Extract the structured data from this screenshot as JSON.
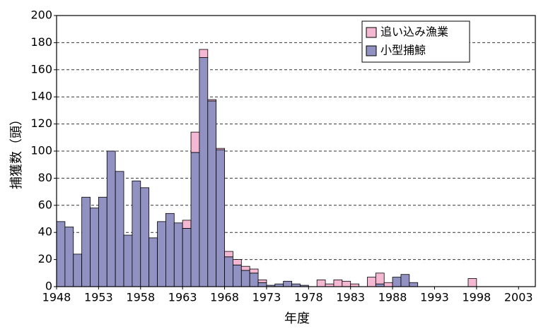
{
  "chart_data": {
    "type": "stacked_bar",
    "x_label": "年度",
    "y_label": "捕獲数（頭）",
    "x": [
      1948,
      1949,
      1950,
      1951,
      1952,
      1953,
      1954,
      1955,
      1956,
      1957,
      1958,
      1959,
      1960,
      1961,
      1962,
      1963,
      1964,
      1965,
      1966,
      1967,
      1968,
      1969,
      1970,
      1971,
      1972,
      1973,
      1974,
      1975,
      1976,
      1977,
      1978,
      1979,
      1980,
      1981,
      1982,
      1983,
      1984,
      1985,
      1986,
      1987,
      1988,
      1989,
      1990,
      1991,
      1992,
      1993,
      1994,
      1995,
      1996,
      1997,
      1998,
      1999,
      2000,
      2001,
      2002,
      2003,
      2004
    ],
    "series": [
      {
        "name": "小型捕鯨",
        "color": "#9191c2",
        "values": [
          48,
          44,
          24,
          66,
          58,
          66,
          100,
          85,
          38,
          78,
          73,
          36,
          48,
          54,
          47,
          43,
          99,
          169,
          137,
          101,
          22,
          16,
          12,
          10,
          3,
          1,
          2,
          4,
          2,
          1,
          0,
          0,
          0,
          0,
          0,
          0,
          0,
          0,
          2,
          0,
          7,
          9,
          3,
          0,
          0,
          0,
          0,
          0,
          0,
          0,
          0,
          0,
          0,
          0,
          0,
          0,
          0
        ]
      },
      {
        "name": "追い込み漁業",
        "color": "#f5b8d2",
        "values": [
          0,
          0,
          0,
          0,
          0,
          0,
          0,
          0,
          0,
          0,
          0,
          0,
          0,
          0,
          0,
          6,
          15,
          6,
          1,
          1,
          4,
          4,
          3,
          3,
          2,
          0,
          0,
          0,
          0,
          0,
          0,
          5,
          2,
          5,
          4,
          2,
          0,
          7,
          8,
          3,
          0,
          0,
          0,
          0,
          0,
          0,
          0,
          0,
          0,
          6,
          0,
          0,
          0,
          0,
          0,
          0,
          0
        ]
      }
    ],
    "xlim": [
      1948,
      2005
    ],
    "xticks": [
      1948,
      1953,
      1958,
      1963,
      1968,
      1973,
      1978,
      1983,
      1988,
      1993,
      1998,
      2003
    ],
    "ylim": [
      0,
      200
    ],
    "yticks": [
      0,
      20,
      40,
      60,
      80,
      100,
      120,
      140,
      160,
      180,
      200
    ],
    "grid": true,
    "legend": "upper right"
  }
}
